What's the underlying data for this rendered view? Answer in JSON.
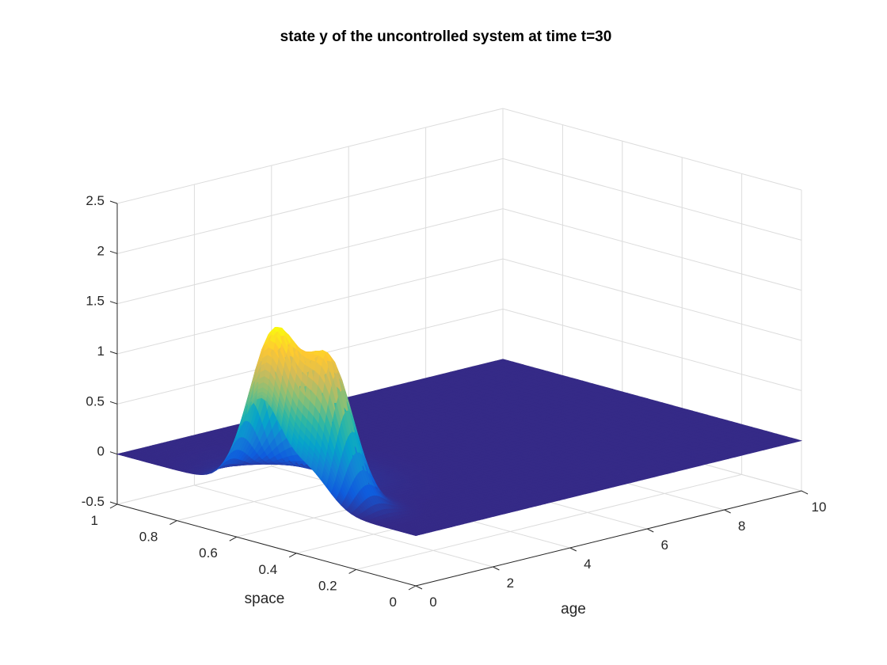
{
  "chart_data": {
    "type": "surface",
    "title": "state y of the uncontrolled system at time t=30",
    "xlabel": "age",
    "ylabel": "space",
    "zlabel": "",
    "xlim": [
      0,
      10
    ],
    "ylim": [
      0,
      1
    ],
    "zlim": [
      -0.5,
      2.5
    ],
    "xticks": [
      "0",
      "2",
      "4",
      "6",
      "8",
      "10"
    ],
    "yticks": [
      "0",
      "0.2",
      "0.4",
      "0.6",
      "0.8",
      "1"
    ],
    "zticks": [
      "-0.5",
      "0",
      "0.5",
      "1",
      "1.5",
      "2",
      "2.5"
    ],
    "grid": true,
    "colormap": "parula",
    "colormap_stops": [
      "#352a87",
      "#0f5cdd",
      "#1481d6",
      "#06a4ca",
      "#2eb7a4",
      "#87bf77",
      "#d1bb59",
      "#fec832",
      "#f9fb0e"
    ],
    "peaks": [
      {
        "age": 0.35,
        "space": 0.52,
        "height": 1.5,
        "age_width": 0.35,
        "space_width": 0.07
      },
      {
        "age": 0.55,
        "space": 0.36,
        "height": 1.35,
        "age_width": 0.33,
        "space_width": 0.07
      },
      {
        "age": 1.35,
        "space": 0.55,
        "height": 0.08,
        "age_width": 0.8,
        "space_width": 0.12
      }
    ],
    "baseline": 0
  }
}
